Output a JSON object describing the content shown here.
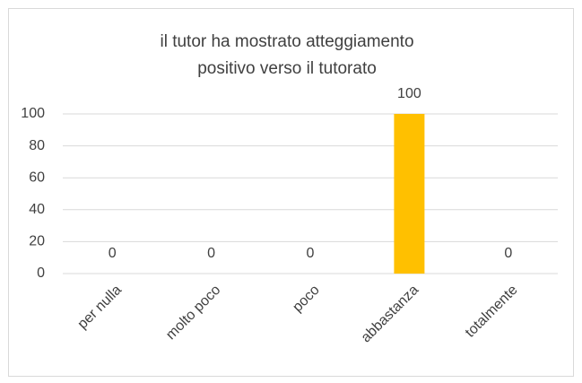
{
  "chart_data": {
    "type": "bar",
    "title": [
      "il tutor ha mostrato atteggiamento",
      "positivo verso il tutorato"
    ],
    "categories": [
      "per nulla",
      "molto poco",
      "poco",
      "abbastanza",
      "totalmente"
    ],
    "values": [
      0,
      0,
      0,
      100,
      0
    ],
    "color": "#ffc000",
    "ylim": [
      0,
      100
    ],
    "yticks": [
      0,
      20,
      40,
      60,
      80,
      100
    ],
    "grid": true
  }
}
